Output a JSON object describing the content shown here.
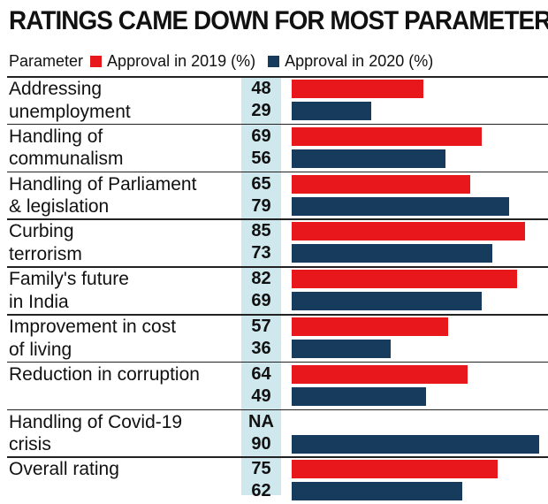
{
  "chart_data": {
    "type": "bar",
    "title": "RATINGS CAME DOWN FOR MOST PARAMETERS",
    "category_header": "Parameter",
    "categories": [
      "Addressing\nunemployment",
      "Handling of\ncommunalism",
      "Handling of Parliament\n& legislation",
      "Curbing\nterrorism",
      "Family's future\nin India",
      "Improvement in cost\nof living",
      "Reduction in corruption",
      "Handling of Covid-19\ncrisis",
      "Overall rating"
    ],
    "series": [
      {
        "name": "Approval in 2019 (%)",
        "color": "#e8171c",
        "values": [
          48,
          69,
          65,
          85,
          82,
          57,
          64,
          null,
          75
        ],
        "labels": [
          "48",
          "69",
          "65",
          "85",
          "82",
          "57",
          "64",
          "NA",
          "75"
        ]
      },
      {
        "name": "Approval in 2020 (%)",
        "color": "#173b5c",
        "values": [
          29,
          56,
          79,
          73,
          69,
          36,
          49,
          90,
          62
        ],
        "labels": [
          "29",
          "56",
          "79",
          "73",
          "69",
          "36",
          "49",
          "90",
          "62"
        ]
      }
    ],
    "xlim": [
      0,
      90
    ],
    "orientation": "horizontal",
    "legend_position": "top",
    "grid": false,
    "value_column_color": "#cfe8ee"
  }
}
